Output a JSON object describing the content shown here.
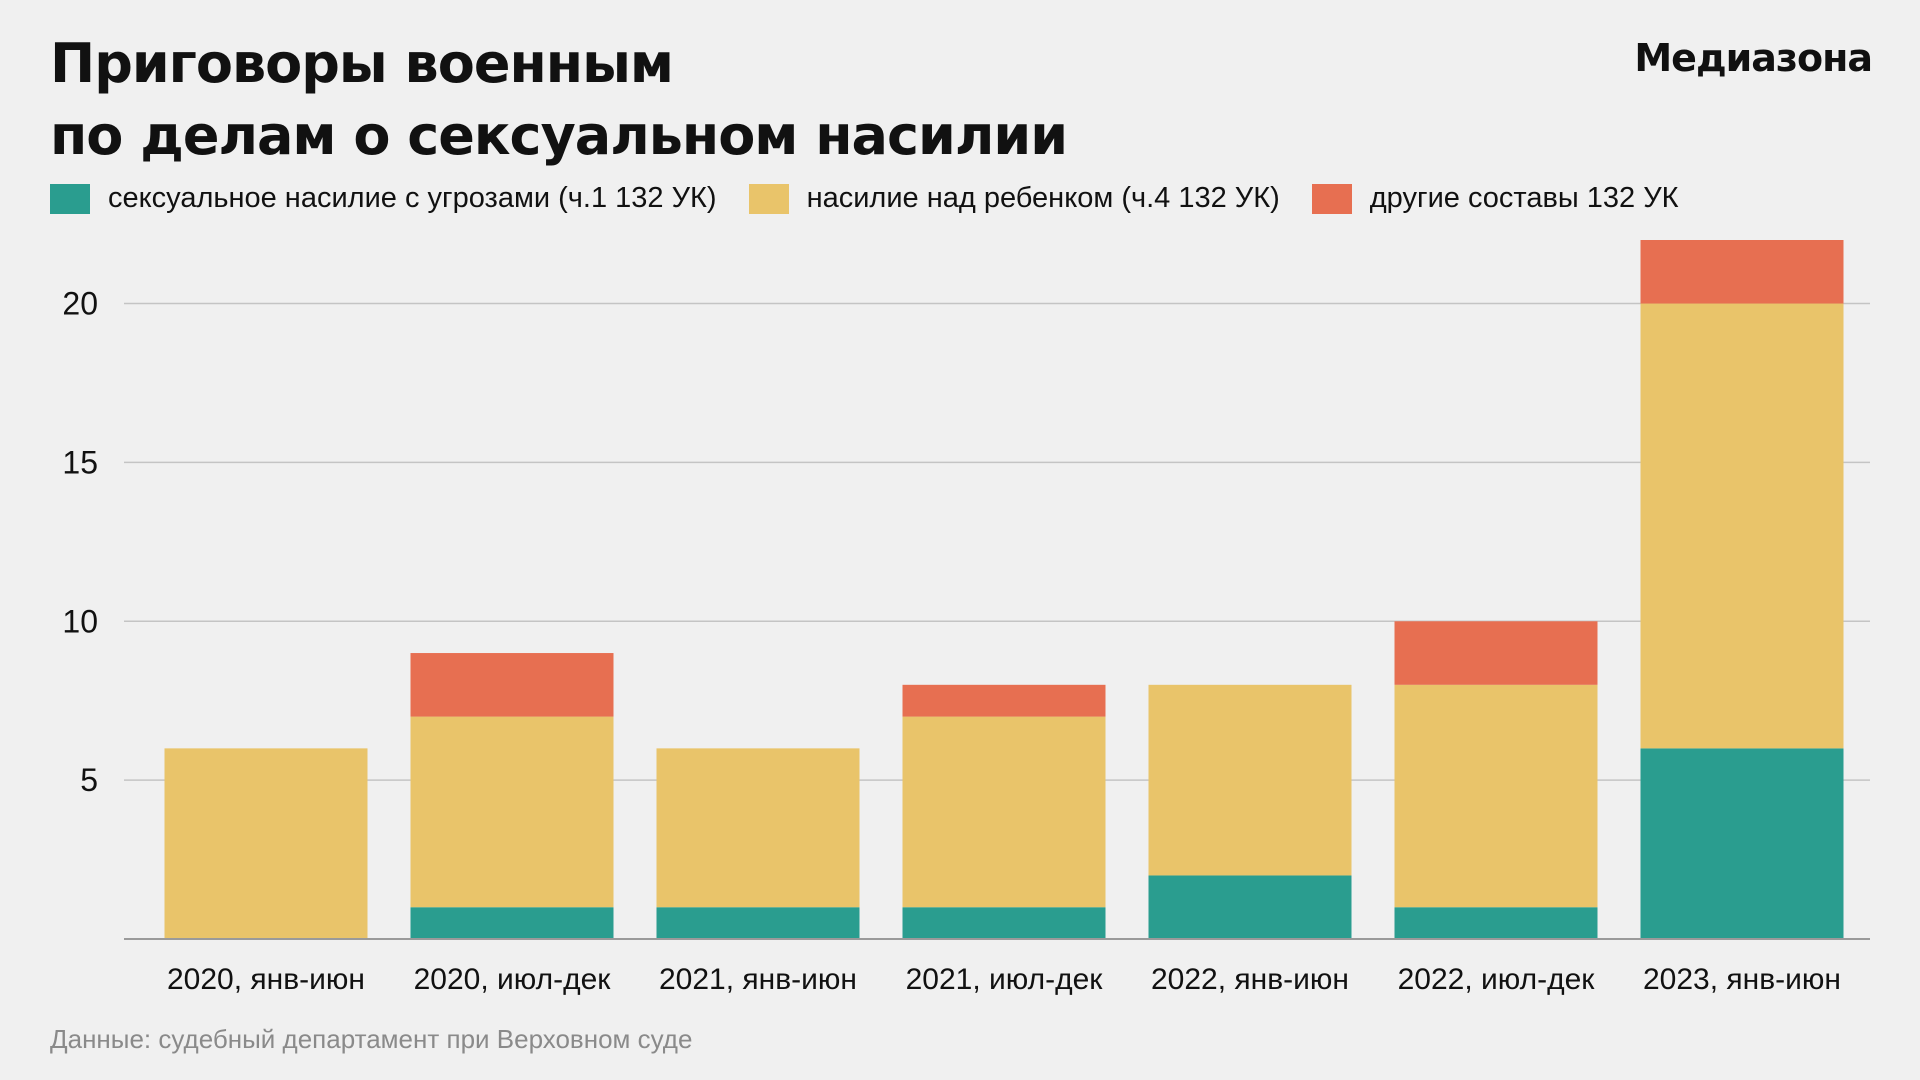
{
  "header": {
    "title_line1": "Приговоры военным",
    "title_line2": "по делам о сексуальном насилии",
    "brand": "Медиазона"
  },
  "source": "Данные: судебный департамент при Верховном суде",
  "colors": {
    "background": "#f0f0f0",
    "grid": "#c4c4c4",
    "axis": "#9a9a9a",
    "teal": "#2a9d8f",
    "yellow": "#e9c46a",
    "orange": "#e76f51"
  },
  "chart_data": {
    "type": "bar",
    "stacked": true,
    "title": "Приговоры военным по делам о сексуальном насилии",
    "xlabel": "",
    "ylabel": "",
    "categories": [
      "2020, янв-июн",
      "2020, июл-дек",
      "2021, янв-июн",
      "2021, июл-дек",
      "2022, янв-июн",
      "2022, июл-дек",
      "2023, янв-июн"
    ],
    "series": [
      {
        "name": "сексуальное насилие с угрозами (ч.1 132 УК)",
        "color": "#2a9d8f",
        "values": [
          0,
          1,
          1,
          1,
          2,
          1,
          6
        ]
      },
      {
        "name": "насилие над ребенком (ч.4 132 УК)",
        "color": "#e9c46a",
        "values": [
          6,
          6,
          5,
          6,
          6,
          7,
          14
        ]
      },
      {
        "name": "другие составы 132 УК",
        "color": "#e76f51",
        "values": [
          0,
          2,
          0,
          1,
          0,
          2,
          2
        ]
      }
    ],
    "ylim": [
      0,
      22
    ],
    "yticks": [
      5,
      10,
      15,
      20
    ],
    "grid": true,
    "legend_position": "top-left"
  }
}
